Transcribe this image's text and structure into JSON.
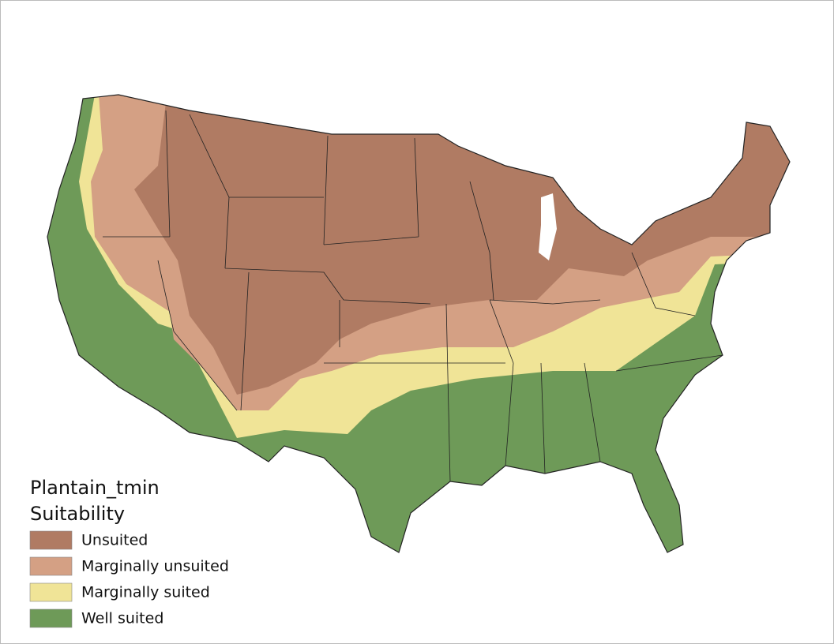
{
  "legend": {
    "title": [
      "Plantain_tmin",
      "Suitability"
    ],
    "items": [
      {
        "label": "Unsuited",
        "color": "#b07b63"
      },
      {
        "label": "Marginally unsuited",
        "color": "#d4a084"
      },
      {
        "label": "Marginally suited",
        "color": "#f0e497"
      },
      {
        "label": "Well suited",
        "color": "#6e9a58"
      }
    ]
  }
}
